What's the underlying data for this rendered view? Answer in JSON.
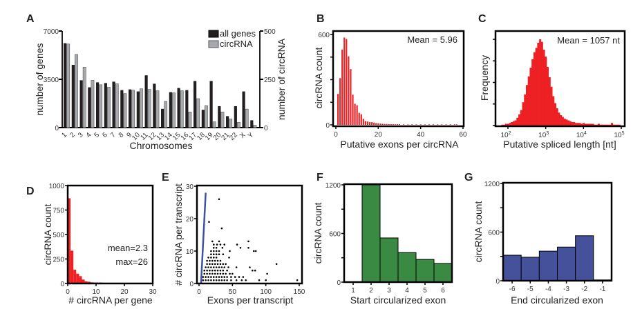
{
  "chart_data": [
    {
      "panel": "A",
      "type": "bar",
      "xlabel": "Chromosomes",
      "ylabel": "number of genes",
      "ylabel_right": "number of circRNA",
      "ylim": [
        0,
        7000
      ],
      "ylim_right": [
        0,
        500
      ],
      "yticks": [
        "0",
        "3500",
        "7000"
      ],
      "yticks_right": [
        "0",
        "250",
        "500"
      ],
      "categories": [
        "1",
        "2",
        "3",
        "4",
        "5",
        "6",
        "7",
        "8",
        "9",
        "10",
        "11",
        "12",
        "13",
        "14",
        "15",
        "16",
        "17",
        "18",
        "19",
        "20",
        "21",
        "22",
        "X",
        "Y"
      ],
      "series": [
        {
          "name": "all genes",
          "axis": "left",
          "color": "#231f20",
          "values": [
            6120,
            4550,
            3430,
            2920,
            3280,
            3230,
            3330,
            2720,
            2770,
            2620,
            3790,
            3180,
            1360,
            2570,
            2870,
            2720,
            3380,
            1290,
            3380,
            1550,
            830,
            1550,
            2620,
            530
          ]
        },
        {
          "name": "circRNA",
          "axis": "right",
          "color": "#a7a9ac",
          "values": [
            433,
            379,
            313,
            245,
            222,
            209,
            227,
            176,
            194,
            201,
            198,
            191,
            136,
            180,
            191,
            81,
            150,
            114,
            30,
            81,
            45,
            27,
            96,
            12
          ]
        }
      ],
      "colors": {
        "left_axis": "#231f20",
        "right_axis": "#8a8fb0",
        "tick_labels": "#2b3a7a"
      }
    },
    {
      "panel": "B",
      "type": "bar",
      "xlabel": "Putative exons per circRNA",
      "ylabel": "circRNA count",
      "xlim": [
        0,
        60
      ],
      "ylim": [
        0,
        600
      ],
      "xticks": [
        "0",
        "20",
        "40",
        "60"
      ],
      "yticks": [
        "0",
        "600"
      ],
      "annotation": "Mean = 5.96",
      "color": "#ed2024",
      "x": [
        1,
        2,
        3,
        4,
        5,
        6,
        7,
        8,
        9,
        10,
        11,
        12,
        13,
        14,
        15,
        16,
        17,
        18,
        19,
        20,
        21,
        22,
        23,
        24,
        25,
        26,
        27,
        28,
        29,
        30,
        32,
        34,
        36,
        38,
        40,
        42,
        44,
        46,
        48,
        50,
        52,
        54,
        56,
        57
      ],
      "values": [
        205,
        310,
        500,
        580,
        570,
        455,
        370,
        200,
        140,
        130,
        80,
        70,
        40,
        25,
        22,
        18,
        18,
        15,
        12,
        10,
        8,
        7,
        6,
        6,
        5,
        5,
        5,
        4,
        4,
        4,
        3,
        3,
        3,
        3,
        3,
        3,
        3,
        3,
        3,
        3,
        3,
        3,
        3,
        3
      ]
    },
    {
      "panel": "C",
      "type": "bar",
      "xlabel": "Putative spliced length [nt]",
      "ylabel": "Frequency",
      "xscale": "log",
      "xlim": [
        100,
        100000
      ],
      "xticks": [
        "10^2",
        "10^3",
        "10^4",
        "10^5"
      ],
      "annotation": "Mean = 1057 nt",
      "color": "#ed2024",
      "log10_x": [
        1.85,
        1.9,
        1.95,
        2.0,
        2.05,
        2.1,
        2.15,
        2.2,
        2.25,
        2.3,
        2.35,
        2.4,
        2.45,
        2.5,
        2.55,
        2.6,
        2.65,
        2.7,
        2.75,
        2.8,
        2.85,
        2.9,
        2.95,
        3.0,
        3.05,
        3.1,
        3.15,
        3.2,
        3.25,
        3.3,
        3.35,
        3.4,
        3.45,
        3.5,
        3.55,
        3.6,
        3.65,
        3.7,
        3.75,
        3.8,
        3.85,
        3.9,
        3.95,
        4.0,
        4.05,
        4.1,
        4.15,
        4.2,
        4.25,
        4.3,
        4.35,
        4.4,
        4.45,
        4.5,
        4.55,
        4.6,
        4.65,
        4.7,
        4.75,
        4.8,
        4.85,
        4.9,
        4.95
      ],
      "values": [
        1,
        1,
        2,
        2,
        3,
        4,
        5,
        6,
        9,
        13,
        18,
        27,
        36,
        47,
        57,
        67,
        77,
        85,
        90,
        96,
        100,
        97,
        88,
        80,
        68,
        56,
        45,
        34,
        26,
        20,
        15,
        12,
        10,
        8,
        7,
        6,
        5,
        4,
        4,
        3,
        3,
        3,
        2,
        3,
        2,
        2,
        2,
        2,
        2,
        1,
        1,
        2,
        1,
        1,
        1,
        1,
        1,
        1,
        3,
        1,
        1,
        1,
        1
      ]
    },
    {
      "panel": "D",
      "type": "bar",
      "xlabel": "# circRNA per gene",
      "ylabel": "circRNA count",
      "xlim": [
        0,
        30
      ],
      "ylim": [
        0,
        1000
      ],
      "xticks": [
        "0",
        "10",
        "20",
        "30"
      ],
      "yticks": [
        "0",
        "250",
        "500",
        "750",
        "1000"
      ],
      "annotations": [
        "mean=2.3",
        "max=26"
      ],
      "color": "#ed2024",
      "x": [
        1,
        2,
        3,
        4,
        5,
        6,
        7,
        8,
        9,
        10,
        11,
        12,
        13
      ],
      "values": [
        870,
        335,
        140,
        100,
        75,
        40,
        22,
        18,
        12,
        10,
        10,
        10,
        8
      ]
    },
    {
      "panel": "E",
      "type": "scatter",
      "xlabel": "Exons per transcript",
      "ylabel": "# circRNA per transcript",
      "xlim": [
        0,
        150
      ],
      "ylim": [
        0,
        30
      ],
      "xticks": [
        "0",
        "50",
        "100",
        "150"
      ],
      "yticks": [
        "0",
        "10",
        "20",
        "30"
      ],
      "line": {
        "x": [
          3,
          10
        ],
        "y": [
          0,
          28
        ],
        "color": "#3f51a5"
      },
      "points": [
        [
          30,
          26
        ],
        [
          15,
          19
        ],
        [
          34,
          17
        ],
        [
          20,
          13
        ],
        [
          30,
          13
        ],
        [
          74,
          13
        ],
        [
          22,
          12
        ],
        [
          27,
          12
        ],
        [
          32,
          12
        ],
        [
          38,
          12
        ],
        [
          57,
          12
        ],
        [
          62,
          11
        ],
        [
          74,
          11
        ],
        [
          22,
          11
        ],
        [
          26,
          11
        ],
        [
          35,
          11
        ],
        [
          82,
          10
        ],
        [
          85,
          10
        ],
        [
          46,
          10
        ],
        [
          18,
          10
        ],
        [
          22,
          10
        ],
        [
          26,
          10
        ],
        [
          30,
          10
        ],
        [
          18,
          9
        ],
        [
          22,
          9
        ],
        [
          26,
          9
        ],
        [
          30,
          9
        ],
        [
          36,
          9
        ],
        [
          14,
          8
        ],
        [
          18,
          8
        ],
        [
          22,
          8
        ],
        [
          26,
          8
        ],
        [
          45,
          8
        ],
        [
          12,
          7
        ],
        [
          16,
          7
        ],
        [
          20,
          7
        ],
        [
          24,
          7
        ],
        [
          28,
          7
        ],
        [
          32,
          7
        ],
        [
          12,
          6
        ],
        [
          16,
          6
        ],
        [
          20,
          6
        ],
        [
          24,
          6
        ],
        [
          28,
          6
        ],
        [
          32,
          6
        ],
        [
          36,
          6
        ],
        [
          40,
          6
        ],
        [
          116,
          6
        ],
        [
          10,
          5
        ],
        [
          14,
          5
        ],
        [
          18,
          5
        ],
        [
          22,
          5
        ],
        [
          26,
          5
        ],
        [
          30,
          5
        ],
        [
          34,
          5
        ],
        [
          38,
          5
        ],
        [
          44,
          5
        ],
        [
          56,
          5
        ],
        [
          76,
          5
        ],
        [
          8,
          4
        ],
        [
          12,
          4
        ],
        [
          16,
          4
        ],
        [
          20,
          4
        ],
        [
          24,
          4
        ],
        [
          28,
          4
        ],
        [
          32,
          4
        ],
        [
          36,
          4
        ],
        [
          42,
          4
        ],
        [
          80,
          4
        ],
        [
          84,
          4
        ],
        [
          8,
          3
        ],
        [
          12,
          3
        ],
        [
          16,
          3
        ],
        [
          20,
          3
        ],
        [
          24,
          3
        ],
        [
          28,
          3
        ],
        [
          32,
          3
        ],
        [
          36,
          3
        ],
        [
          40,
          3
        ],
        [
          46,
          3
        ],
        [
          50,
          3
        ],
        [
          102,
          3
        ],
        [
          6,
          2
        ],
        [
          10,
          2
        ],
        [
          14,
          2
        ],
        [
          18,
          2
        ],
        [
          22,
          2
        ],
        [
          26,
          2
        ],
        [
          30,
          2
        ],
        [
          34,
          2
        ],
        [
          38,
          2
        ],
        [
          42,
          2
        ],
        [
          48,
          2
        ],
        [
          54,
          2
        ],
        [
          60,
          2
        ],
        [
          66,
          2
        ],
        [
          6,
          1
        ],
        [
          10,
          1
        ],
        [
          14,
          1
        ],
        [
          18,
          1
        ],
        [
          22,
          1
        ],
        [
          26,
          1
        ],
        [
          30,
          1
        ],
        [
          34,
          1
        ],
        [
          38,
          1
        ],
        [
          42,
          1
        ],
        [
          48,
          1
        ],
        [
          56,
          1
        ],
        [
          64,
          1
        ],
        [
          70,
          1
        ],
        [
          90,
          1
        ],
        [
          100,
          1
        ],
        [
          147,
          1
        ]
      ]
    },
    {
      "panel": "F",
      "type": "bar",
      "xlabel": "Start circularized exon",
      "ylabel": "circRNA count",
      "ylim": [
        0,
        1200
      ],
      "yticks": [
        "0",
        "600",
        "1200"
      ],
      "categories": [
        "1",
        "2",
        "3",
        "4",
        "5",
        "6"
      ],
      "values": [
        5,
        1200,
        545,
        365,
        280,
        230
      ],
      "color": "#3a8a44"
    },
    {
      "panel": "G",
      "type": "bar",
      "xlabel": "End circularized exon",
      "ylabel": "circRNA count",
      "ylim": [
        0,
        1200
      ],
      "yticks": [
        "0",
        "600",
        "1200"
      ],
      "categories": [
        "-6",
        "-5",
        "-4",
        "-3",
        "-2",
        "-1"
      ],
      "values": [
        315,
        290,
        365,
        415,
        555,
        10
      ],
      "color": "#45529b"
    }
  ]
}
